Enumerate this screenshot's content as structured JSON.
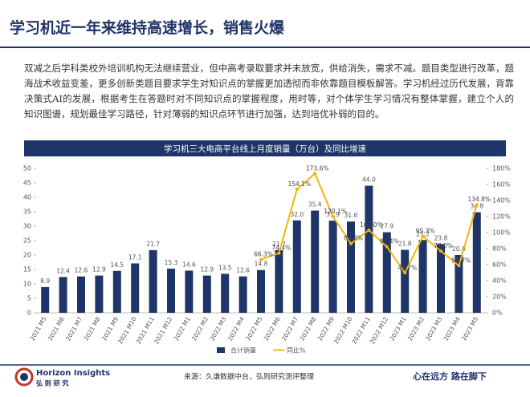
{
  "header": {
    "title": "学习机近一年来维持高速增长，销售火爆"
  },
  "body": {
    "paragraph": "双减之后学科类校外培训机构无法继续营业，但中高考录取要求并未放宽，供给消失，需求不减。题目类型进行改革，题海战术收益变差，更多创新类题目要求学生对知识点的掌握更加透彻而非依靠题目模板解答。学习机经过历代发展，背靠决策式AI的发展，根据考生在答题时对不同知识点的掌握程度，用时等，对个体学生学习情况有整体掌握，建立个人的知识图谱，规划最佳学习路径，针对薄弱的知识点环节进行加强，达到培优补弱的目的。"
  },
  "chart_data": {
    "type": "bar",
    "title": "学习机三大电商平台线上月度销量（万台）及同比增速",
    "categories": [
      "2021 M5",
      "2021 M6",
      "2021 M7",
      "2021 M8",
      "2021 M9",
      "2021 M10",
      "2021 M11",
      "2021 M12",
      "2022 M1",
      "2022 M2",
      "2022 M3",
      "2022 M4",
      "2022 M5",
      "2022 M6",
      "2022 M7",
      "2022 M8",
      "2022 M9",
      "2022 M10",
      "2022 M11",
      "2022 M12",
      "2023 M1",
      "2023 M2",
      "2023 M3",
      "2023 M4",
      "2023 M5"
    ],
    "series": [
      {
        "name": "合计销量",
        "type": "bar",
        "color": "#1f3468",
        "values": [
          8.9,
          12.4,
          12.6,
          12.9,
          14.5,
          17.1,
          21.7,
          15.3,
          14.6,
          12.9,
          13.5,
          12.6,
          14.8,
          21.7,
          32.0,
          35.4,
          31.9,
          31.6,
          44.0,
          27.9,
          21.8,
          25.2,
          23.8,
          20.0,
          34.8
        ],
        "value_labels": [
          "8.9",
          "12.4",
          "12.6",
          "12.9",
          "14.5",
          "17.1",
          "21.7",
          "15.3",
          "14.6",
          "12.9",
          "13.5",
          "12.6",
          "14.8",
          "21.7",
          "32.0",
          "35.4",
          "31.9",
          "31.6",
          "44.0",
          "27.9",
          "21.8",
          "25.2",
          "23.8",
          "20.0",
          "34.8"
        ]
      },
      {
        "name": "同比%",
        "type": "line",
        "axis": "y2",
        "color": "#f2b705",
        "values": [
          null,
          null,
          null,
          null,
          null,
          null,
          null,
          null,
          null,
          null,
          null,
          null,
          66.3,
          74.4,
          154.1,
          173.6,
          120.1,
          86.3,
          103.0,
          82.4,
          49.7,
          95.3,
          77.0,
          58.7,
          134.8
        ],
        "value_labels": [
          null,
          null,
          null,
          null,
          null,
          null,
          null,
          null,
          null,
          null,
          null,
          null,
          "66.3%",
          "74.4%",
          "154.1%",
          "173.6%",
          "120.1%",
          "86.3%",
          "103.0%",
          "82.4%",
          "49.7%",
          "95.3%",
          "77.0%",
          "58.7%",
          "134.8%"
        ]
      }
    ],
    "ylim": [
      0,
      50
    ],
    "yticks": [
      0,
      5,
      10,
      15,
      20,
      25,
      30,
      35,
      40,
      45,
      50
    ],
    "y2lim": [
      0,
      180
    ],
    "y2ticks": [
      {
        "value": 0,
        "label": "0%"
      },
      {
        "value": 20,
        "label": "20%"
      },
      {
        "value": 40,
        "label": "40%"
      },
      {
        "value": 60,
        "label": "60%"
      },
      {
        "value": 80,
        "label": "80%"
      },
      {
        "value": 100,
        "label": "100%"
      },
      {
        "value": 120,
        "label": "120%"
      },
      {
        "value": 140,
        "label": "140%"
      },
      {
        "value": 160,
        "label": "160%"
      },
      {
        "value": 180,
        "label": "180%"
      }
    ],
    "legend": "bottom"
  },
  "footer": {
    "logo": "Horizon Insights",
    "logo_sub": "弘 则 研 究",
    "source": "来源：久谦数据中台，弘则研究测评整理",
    "slogan": "心在远方 路在脚下"
  }
}
